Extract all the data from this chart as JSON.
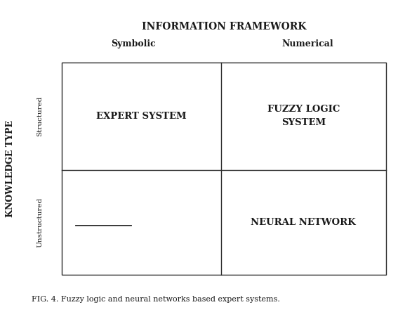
{
  "title": "INFORMATION FRAMEWORK",
  "symbolic_label": "Symbolic",
  "numerical_label": "Numerical",
  "y_axis_label": "KNOWLEDGE TYPE",
  "structured_label": "Structured",
  "unstructured_label": "Unstructured",
  "cell_labels": {
    "top_left": "EXPERT SYSTEM",
    "top_right": "FUZZY LOGIC\nSYSTEM",
    "bottom_right": "NEURAL NETWORK"
  },
  "caption": "FIG. 4. Fuzzy logic and neural networks based expert systems.",
  "line_color": "#2a2a2a",
  "background_color": "#ffffff",
  "text_color": "#1a1a1a",
  "title_fontsize": 10,
  "sublabel_fontsize": 9,
  "ylabel_fontsize": 9,
  "rotlabel_fontsize": 7.5,
  "cell_fontsize": 9.5,
  "caption_fontsize": 8
}
